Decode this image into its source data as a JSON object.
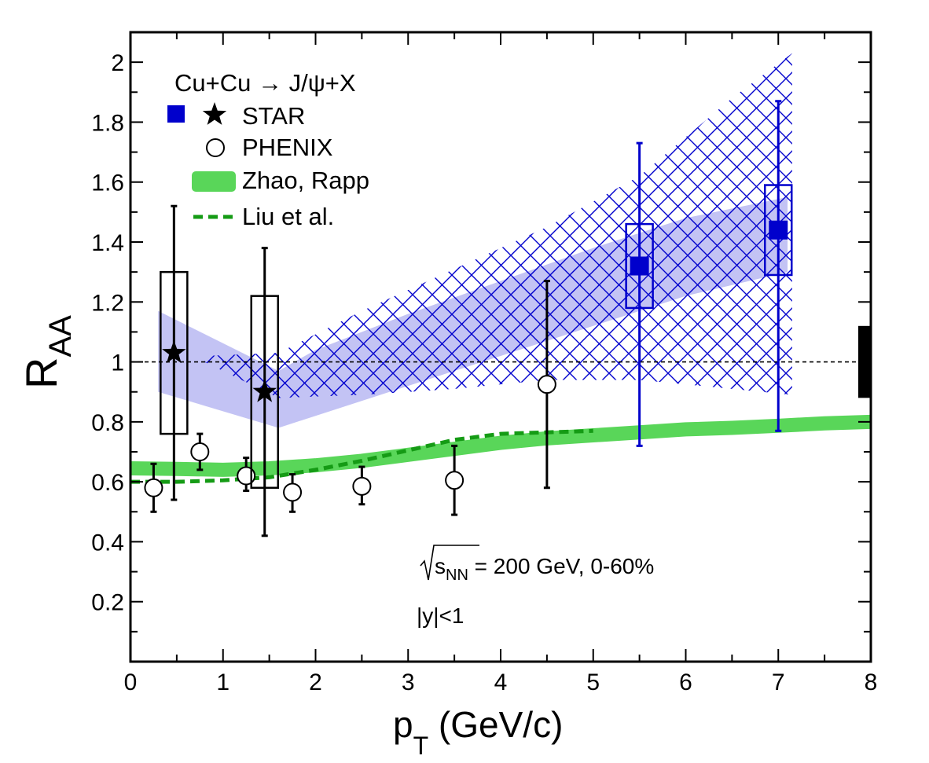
{
  "chart_data": {
    "type": "scatter",
    "xlabel": "p",
    "xlabel_sub": "T",
    "xlabel_unit": " (GeV/c)",
    "ylabel": "R",
    "ylabel_sub": "AA",
    "xlim": [
      0,
      8
    ],
    "ylim": [
      0,
      2.1
    ],
    "x_ticks": [
      "0",
      "1",
      "2",
      "3",
      "4",
      "5",
      "6",
      "7",
      "8"
    ],
    "y_ticks": [
      "0.2",
      "0.4",
      "0.6",
      "0.8",
      "1",
      "1.2",
      "1.4",
      "1.6",
      "1.8",
      "2"
    ],
    "legend": {
      "title": "Cu+Cu → J/ψ+X",
      "placement": "top-left",
      "entries": [
        "STAR",
        "PHENIX",
        "Zhao, Rapp",
        "Liu et al."
      ]
    },
    "annotations": {
      "energy_sqrt": "s",
      "energy_sub": "NN",
      "energy_rest": " = 200 GeV, 0-60%",
      "rapidity": "|y|<1"
    },
    "reference_line": 1.0,
    "global_uncertainty": [
      0.88,
      1.12
    ],
    "colors": {
      "star_blue": "#0000cc",
      "star_band": "#b9b9f2",
      "zhao_rapp": "#59d659",
      "liu": "#159b15",
      "black": "#000000"
    },
    "series": [
      {
        "name": "STAR",
        "marker": "star",
        "x": [
          0.47,
          1.45
        ],
        "y": [
          1.03,
          0.9
        ],
        "yerr_low": [
          0.54,
          0.42
        ],
        "yerr_high": [
          1.52,
          1.38
        ],
        "sys_low": [
          0.76,
          0.58
        ],
        "sys_high": [
          1.3,
          1.22
        ]
      },
      {
        "name": "STAR",
        "marker": "square",
        "x": [
          5.5,
          7.0
        ],
        "y": [
          1.32,
          1.44
        ],
        "yerr_low": [
          0.72,
          0.77
        ],
        "yerr_high": [
          1.73,
          1.87
        ],
        "sys_low": [
          1.18,
          1.29
        ],
        "sys_high": [
          1.46,
          1.59
        ]
      },
      {
        "name": "PHENIX",
        "marker": "open-circle",
        "x": [
          0.25,
          0.75,
          1.25,
          1.75,
          2.5,
          3.5,
          4.5
        ],
        "y": [
          0.58,
          0.7,
          0.62,
          0.565,
          0.585,
          0.605,
          0.925
        ],
        "yerr_low": [
          0.5,
          0.64,
          0.57,
          0.5,
          0.525,
          0.49,
          0.58
        ],
        "yerr_high": [
          0.66,
          0.76,
          0.68,
          0.625,
          0.65,
          0.72,
          1.27
        ]
      },
      {
        "name": "Zhao, Rapp",
        "x": [
          0,
          0.5,
          1,
          1.5,
          2,
          2.5,
          3,
          3.5,
          4,
          4.5,
          5,
          5.5,
          6,
          6.5,
          7,
          7.5,
          8
        ],
        "y": [
          0.645,
          0.643,
          0.64,
          0.645,
          0.655,
          0.67,
          0.69,
          0.71,
          0.73,
          0.745,
          0.755,
          0.765,
          0.775,
          0.78,
          0.787,
          0.795,
          0.8
        ]
      },
      {
        "name": "Liu et al.",
        "x": [
          0,
          0.5,
          1,
          1.5,
          2,
          2.5,
          3,
          3.5,
          4,
          4.5,
          5
        ],
        "y": [
          0.6,
          0.6,
          0.605,
          0.615,
          0.64,
          0.67,
          0.705,
          0.74,
          0.76,
          0.765,
          0.77
        ]
      }
    ],
    "bands": {
      "star_shaded": {
        "x": [
          0.3,
          1.6,
          2,
          3,
          4,
          5,
          6,
          7.1
        ],
        "low": [
          0.9,
          0.78,
          0.82,
          0.92,
          1.02,
          1.12,
          1.22,
          1.3
        ],
        "high": [
          1.17,
          0.97,
          1.04,
          1.16,
          1.27,
          1.38,
          1.48,
          1.55
        ]
      },
      "star_hatched": {
        "x": [
          0.8,
          1.6,
          2.5,
          3.5,
          4.5,
          5.5,
          6.5,
          7.15
        ],
        "low": [
          1.0,
          0.88,
          0.89,
          0.91,
          0.94,
          0.94,
          0.91,
          0.89
        ],
        "high": [
          1.02,
          1.03,
          1.17,
          1.31,
          1.45,
          1.62,
          1.88,
          2.03
        ]
      }
    }
  }
}
